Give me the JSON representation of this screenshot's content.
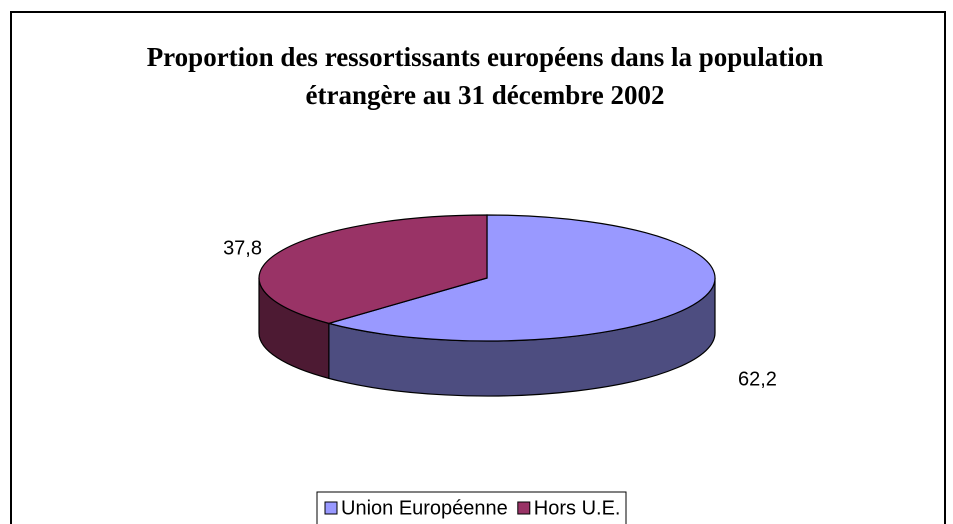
{
  "chart_data": {
    "type": "pie",
    "title": "Proportion des ressortissants européens dans la population étrangère au 31 décembre 2002",
    "categories": [
      "Union Européenne",
      "Hors U.E."
    ],
    "values": [
      62.2,
      37.8
    ],
    "value_labels": [
      "62,2",
      "37,8"
    ],
    "colors": [
      "#9999ff",
      "#993366"
    ],
    "legend": "bottom"
  }
}
